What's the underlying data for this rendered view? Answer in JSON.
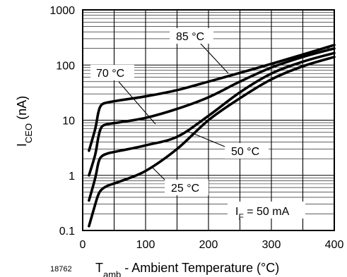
{
  "figure_number": "18762",
  "chart_data": {
    "type": "line",
    "xlabel_main": "T",
    "xlabel_sub": "amb",
    "xlabel_rest": " - Ambient Temperature (°C)",
    "ylabel_main": "I",
    "ylabel_sub": "CEO",
    "ylabel_rest": " (nA)",
    "xlim": [
      0,
      400
    ],
    "ylim": [
      0.1,
      1000
    ],
    "y_scale": "log",
    "x_ticks": [
      {
        "value": 0,
        "label": "0"
      },
      {
        "value": 100,
        "label": "100"
      },
      {
        "value": 200,
        "label": "200"
      },
      {
        "value": 300,
        "label": "300"
      },
      {
        "value": 400,
        "label": "400"
      }
    ],
    "y_ticks": [
      {
        "value": 0.1,
        "label": "0.1"
      },
      {
        "value": 1,
        "label": "1"
      },
      {
        "value": 10,
        "label": "10"
      },
      {
        "value": 100,
        "label": "100"
      },
      {
        "value": 1000,
        "label": "1000"
      }
    ],
    "grid": true,
    "condition_main": "I",
    "condition_sub": "F",
    "condition_rest": " = 50 mA",
    "series": [
      {
        "name": "85 °C",
        "x": [
          10,
          20,
          25,
          30,
          40,
          60,
          100,
          150,
          200,
          250,
          300,
          350,
          400
        ],
        "y": [
          2.8,
          7,
          14,
          19,
          21,
          23,
          27,
          35,
          50,
          72,
          105,
          155,
          230
        ]
      },
      {
        "name": "70 °C",
        "x": [
          10,
          20,
          25,
          30,
          40,
          60,
          100,
          150,
          200,
          250,
          300,
          350,
          400
        ],
        "y": [
          1.0,
          2.4,
          5,
          7.5,
          8.5,
          9.2,
          11,
          16,
          26,
          50,
          90,
          140,
          200
        ]
      },
      {
        "name": "50 °C",
        "x": [
          10,
          20,
          25,
          30,
          40,
          60,
          100,
          150,
          200,
          250,
          300,
          350,
          400
        ],
        "y": [
          0.35,
          0.9,
          1.7,
          2.2,
          2.5,
          2.8,
          3.5,
          5,
          12,
          32,
          70,
          115,
          165
        ]
      },
      {
        "name": "25 °C",
        "x": [
          10,
          20,
          25,
          30,
          40,
          60,
          100,
          150,
          200,
          250,
          300,
          350,
          400
        ],
        "y": [
          0.12,
          0.3,
          0.45,
          0.55,
          0.65,
          0.78,
          1.2,
          3,
          10,
          25,
          55,
          95,
          140
        ]
      }
    ],
    "annotations": [
      {
        "text": "85 °C",
        "series": 0
      },
      {
        "text": "70 °C",
        "series": 1
      },
      {
        "text": "50 °C",
        "series": 2
      },
      {
        "text": "25 °C",
        "series": 3
      }
    ]
  }
}
